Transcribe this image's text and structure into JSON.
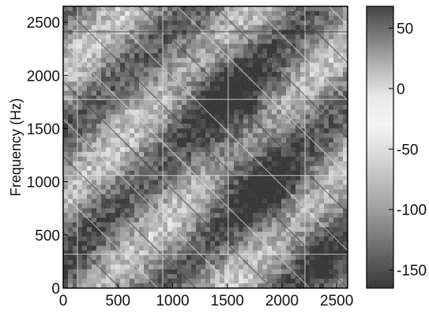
{
  "chart_data": {
    "type": "heatmap",
    "title": "",
    "xlabel": "",
    "ylabel": "Frequency (Hz)",
    "xlim": [
      0,
      2600
    ],
    "ylim": [
      0,
      2650
    ],
    "x_ticks": [
      0,
      500,
      1000,
      1500,
      2000,
      2500
    ],
    "y_ticks": [
      0,
      500,
      1000,
      1500,
      2000,
      2500
    ],
    "colorbar": {
      "range": [
        -165,
        68
      ],
      "ticks": [
        50,
        0,
        -50,
        -100,
        -150
      ],
      "colormap": "grayscale, dark = high and low extremes, white near -25"
    },
    "grid": false,
    "legend": "colorbar-right"
  },
  "colors": {
    "background": "#ffffff",
    "frame": "#000000"
  }
}
